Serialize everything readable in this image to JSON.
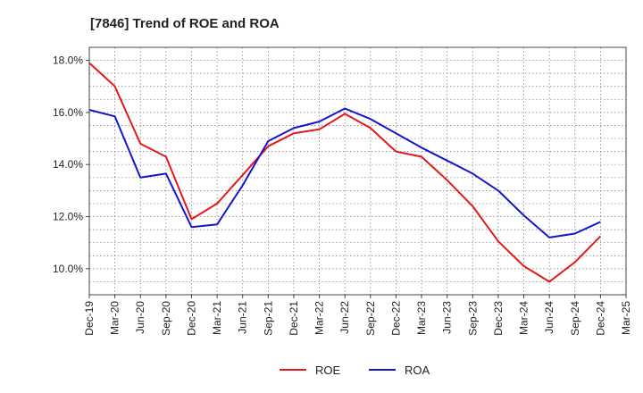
{
  "chart_data": {
    "type": "line",
    "title": "[7846]  Trend of ROE and ROA",
    "xlabel": "",
    "ylabel": "",
    "categories": [
      "Dec-19",
      "Mar-20",
      "Jun-20",
      "Sep-20",
      "Dec-20",
      "Mar-21",
      "Jun-21",
      "Sep-21",
      "Dec-21",
      "Mar-22",
      "Jun-22",
      "Sep-22",
      "Dec-22",
      "Mar-23",
      "Jun-23",
      "Sep-23",
      "Dec-23",
      "Mar-24",
      "Jun-24",
      "Sep-24",
      "Dec-24",
      "Mar-25"
    ],
    "y_ticks": [
      "10.0%",
      "12.0%",
      "14.0%",
      "16.0%",
      "18.0%"
    ],
    "ylim": [
      9.0,
      18.5
    ],
    "grid": true,
    "legend_position": "bottom-center",
    "series": [
      {
        "name": "ROE",
        "color": "#e31a1c",
        "values": [
          17.9,
          17.0,
          14.8,
          14.3,
          11.9,
          12.5,
          13.6,
          14.7,
          15.2,
          15.35,
          15.95,
          15.4,
          14.5,
          14.3,
          13.4,
          12.4,
          11.05,
          10.1,
          9.5,
          10.25,
          11.25,
          null
        ]
      },
      {
        "name": "ROA",
        "color": "#1515d0",
        "values": [
          16.1,
          15.85,
          13.5,
          13.65,
          11.6,
          11.7,
          13.2,
          14.9,
          15.4,
          15.65,
          16.15,
          15.75,
          15.2,
          14.65,
          14.15,
          13.65,
          13.0,
          12.05,
          11.2,
          11.35,
          11.8,
          null
        ]
      }
    ]
  }
}
